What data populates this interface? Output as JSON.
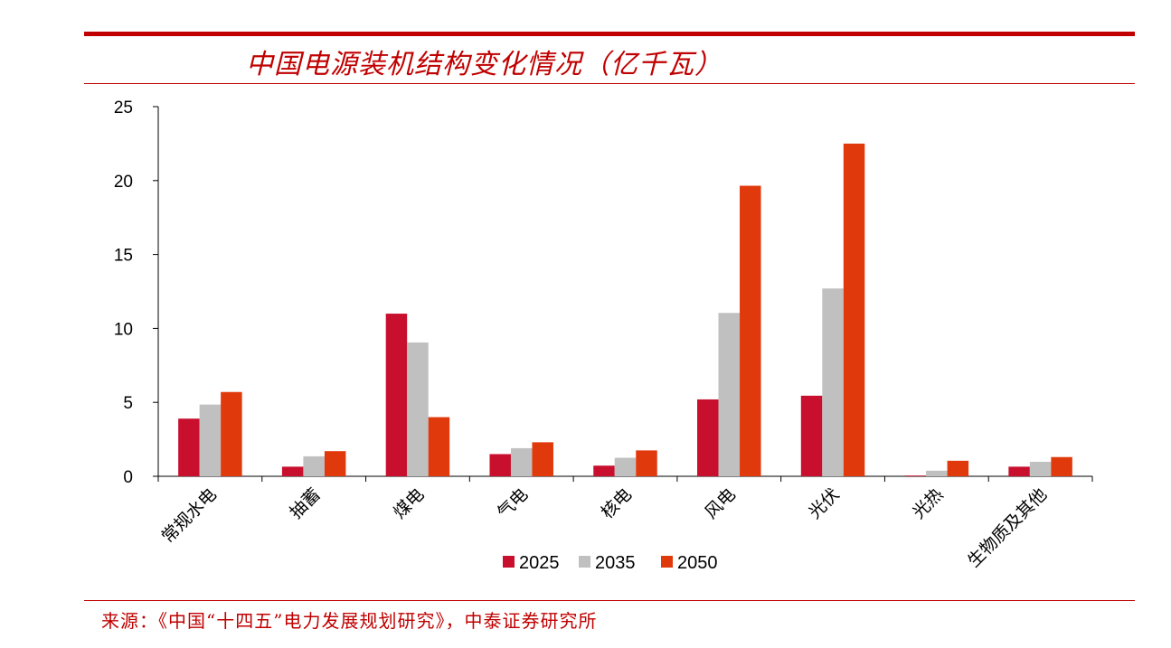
{
  "header": {
    "title": "中国电源装机结构变化情况（亿千瓦）"
  },
  "footer": {
    "source": "来源：《中国“十四五”电力发展规划研究》，中泰证券研究所"
  },
  "chart_data": {
    "type": "bar",
    "title": "中国电源装机结构变化情况（亿千瓦）",
    "xlabel": "",
    "ylabel": "",
    "ylim": [
      0,
      25
    ],
    "yticks": [
      0,
      5,
      10,
      15,
      20,
      25
    ],
    "grid": false,
    "legend_position": "bottom",
    "categories": [
      "常规水电",
      "抽蓄",
      "煤电",
      "气电",
      "核电",
      "风电",
      "光伏",
      "光热",
      "生物质及其他"
    ],
    "series": [
      {
        "name": "2025",
        "color": "#c8102e",
        "values": [
          3.9,
          0.65,
          11.0,
          1.5,
          0.72,
          5.2,
          5.45,
          0.05,
          0.65
        ]
      },
      {
        "name": "2035",
        "color": "#c0c0c0",
        "values": [
          4.85,
          1.35,
          9.05,
          1.9,
          1.25,
          11.05,
          12.7,
          0.38,
          0.98
        ]
      },
      {
        "name": "2050",
        "color": "#e03a0c",
        "values": [
          5.7,
          1.7,
          4.0,
          2.3,
          1.75,
          19.65,
          22.5,
          1.05,
          1.3
        ]
      }
    ]
  }
}
